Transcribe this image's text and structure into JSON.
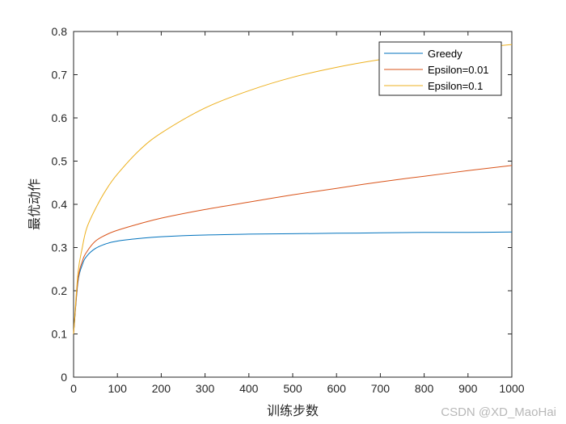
{
  "chart_data": {
    "type": "line",
    "xlabel": "训练步数",
    "ylabel": "最优动作",
    "xlim": [
      0,
      1000
    ],
    "ylim": [
      0,
      0.8
    ],
    "xticks": [
      0,
      100,
      200,
      300,
      400,
      500,
      600,
      700,
      800,
      900,
      1000
    ],
    "yticks": [
      0,
      0.1,
      0.2,
      0.3,
      0.4,
      0.5,
      0.6,
      0.7,
      0.8
    ],
    "xtick_labels": [
      "0",
      "100",
      "200",
      "300",
      "400",
      "500",
      "600",
      "700",
      "800",
      "900",
      "1000"
    ],
    "ytick_labels": [
      "0",
      "0.1",
      "0.2",
      "0.3",
      "0.4",
      "0.5",
      "0.6",
      "0.7",
      "0.8"
    ],
    "grid": false,
    "legend_position": "top-right",
    "x": [
      0,
      10,
      20,
      30,
      50,
      75,
      100,
      150,
      200,
      300,
      400,
      500,
      600,
      700,
      800,
      900,
      1000
    ],
    "series": [
      {
        "name": "Greedy",
        "color": "#0072BD",
        "values": [
          0.1,
          0.22,
          0.26,
          0.28,
          0.298,
          0.309,
          0.315,
          0.321,
          0.325,
          0.329,
          0.331,
          0.332,
          0.333,
          0.334,
          0.335,
          0.335,
          0.336
        ]
      },
      {
        "name": "Epsilon=0.01",
        "color": "#D95319",
        "values": [
          0.1,
          0.225,
          0.268,
          0.29,
          0.315,
          0.33,
          0.34,
          0.355,
          0.368,
          0.388,
          0.405,
          0.422,
          0.437,
          0.452,
          0.465,
          0.478,
          0.49
        ]
      },
      {
        "name": "Epsilon=0.1",
        "color": "#EDB120",
        "values": [
          0.1,
          0.24,
          0.3,
          0.345,
          0.39,
          0.435,
          0.47,
          0.525,
          0.565,
          0.623,
          0.663,
          0.694,
          0.717,
          0.735,
          0.749,
          0.76,
          0.77
        ]
      }
    ]
  },
  "watermark": "CSDN @XD_MaoHai"
}
